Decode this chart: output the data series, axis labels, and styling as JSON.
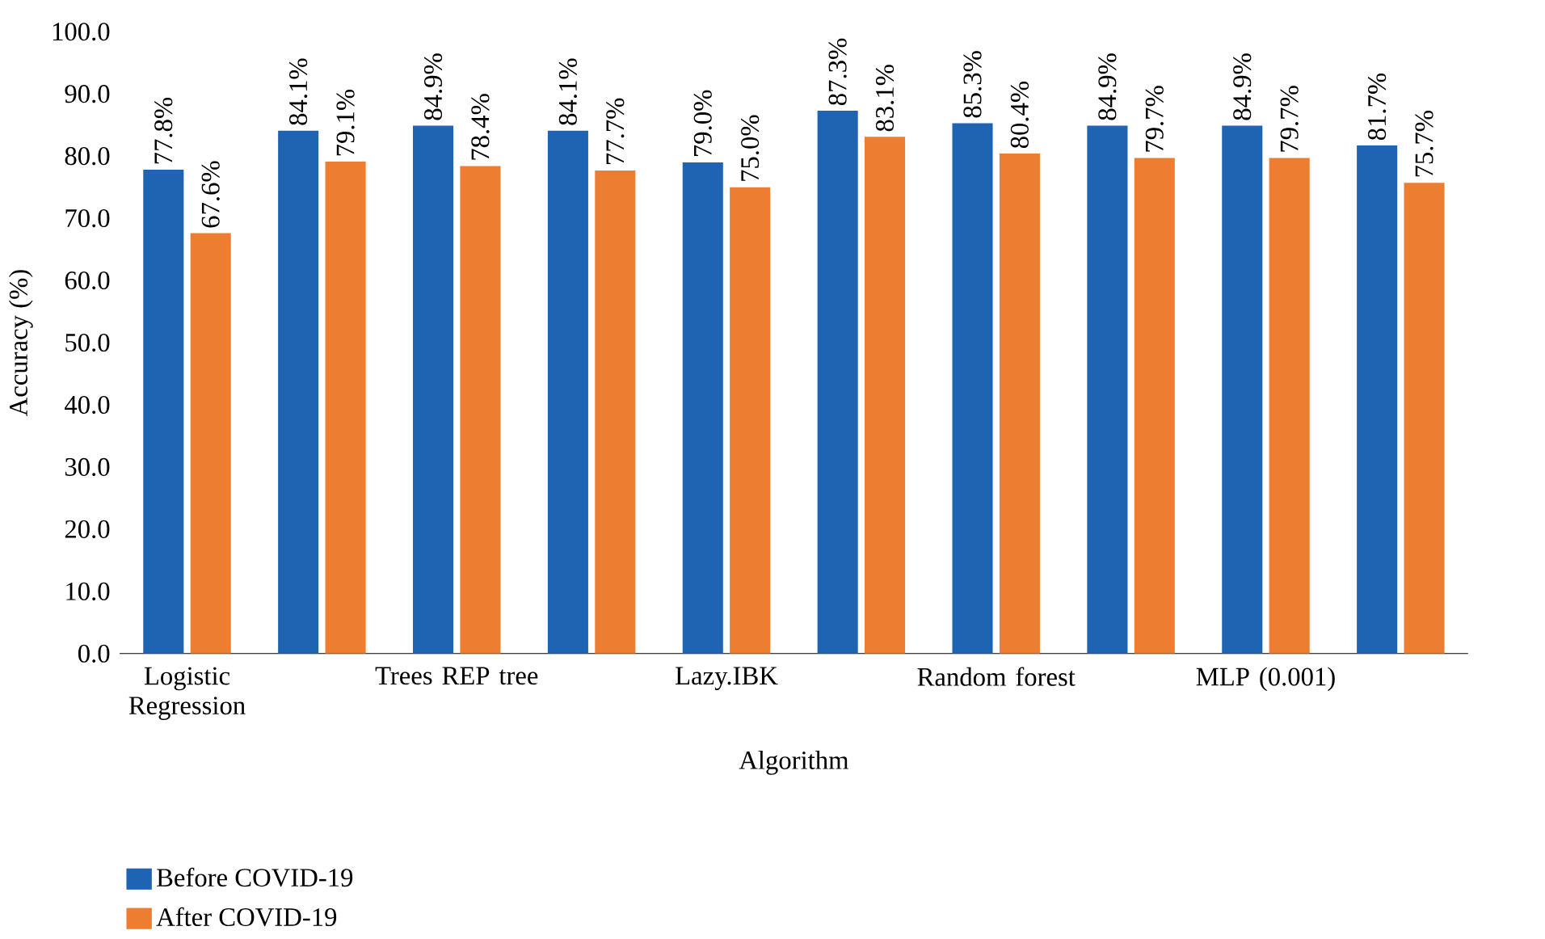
{
  "chart_data": {
    "type": "bar",
    "xlabel": "Algorithm",
    "ylabel": "Accuracy (%)",
    "categories": [
      "Logistic Regression",
      null,
      "Trees REP tree",
      null,
      "Lazy.IBK",
      null,
      "Random forest",
      null,
      "MLP (0.001)",
      null
    ],
    "series": [
      {
        "name": "Before COVID-19",
        "color": "#1f63b3",
        "values": [
          77.8,
          84.1,
          84.9,
          84.1,
          79.0,
          87.3,
          85.3,
          84.9,
          84.9,
          81.7
        ],
        "value_labels": [
          "77.8%",
          "84.1%",
          "84.9%",
          "84.1%",
          "79.0%",
          "87.3%",
          "85.3%",
          "84.9%",
          "84.9%",
          "81.7%"
        ]
      },
      {
        "name": "After COVID-19",
        "color": "#ed7d31",
        "values": [
          67.6,
          79.1,
          78.4,
          77.7,
          75.0,
          83.1,
          80.4,
          79.7,
          79.7,
          75.7
        ],
        "value_labels": [
          "67.6%",
          "79.1%",
          "78.4%",
          "77.7%",
          "75.0%",
          "83.1%",
          "80.4%",
          "79.7%",
          "79.7%",
          "75.7%"
        ]
      }
    ],
    "ylim": [
      0,
      100
    ],
    "yticks": [
      {
        "value": 0,
        "label": "0.0"
      },
      {
        "value": 10,
        "label": "10.0"
      },
      {
        "value": 20,
        "label": "20.0"
      },
      {
        "value": 30,
        "label": "30.0"
      },
      {
        "value": 40,
        "label": "40.0"
      },
      {
        "value": 50,
        "label": "50.0"
      },
      {
        "value": 60,
        "label": "60.0"
      },
      {
        "value": 70,
        "label": "70.0"
      },
      {
        "value": 80,
        "label": "80.0"
      },
      {
        "value": 90,
        "label": "90.0"
      },
      {
        "value": 100,
        "label": "100.0"
      }
    ],
    "legend": "bottom"
  }
}
